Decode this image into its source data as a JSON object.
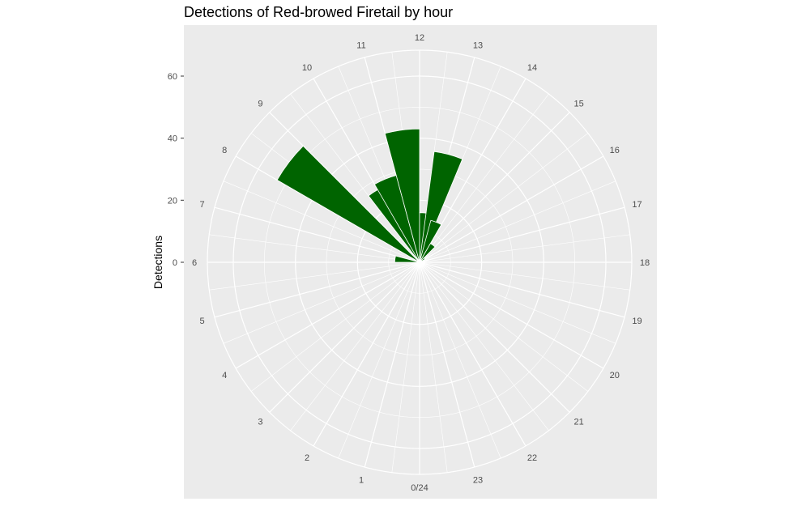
{
  "chart_data": {
    "type": "bar",
    "coord": "polar",
    "title": "Detections of Red-browed Firetail by hour",
    "ylabel": "Detections",
    "xlabel": "",
    "hour_labels": [
      "0/24",
      "1",
      "2",
      "3",
      "4",
      "5",
      "6",
      "7",
      "8",
      "9",
      "10",
      "11",
      "12",
      "13",
      "14",
      "15",
      "16",
      "17",
      "18",
      "19",
      "20",
      "21",
      "22",
      "23"
    ],
    "y_ticks": [
      0,
      20,
      40,
      60
    ],
    "ylim": [
      0,
      60
    ],
    "bar_color": "#006400",
    "panel_background": "#ebebeb",
    "grid_color": "#ffffff",
    "bins": [
      {
        "hour": 5.5,
        "value": 1
      },
      {
        "hour": 6.5,
        "value": 8
      },
      {
        "hour": 7.5,
        "value": 1
      },
      {
        "hour": 8.5,
        "value": 53
      },
      {
        "hour": 9.5,
        "value": 1
      },
      {
        "hour": 10.0,
        "value": 27
      },
      {
        "hour": 10.5,
        "value": 29
      },
      {
        "hour": 11.5,
        "value": 43
      },
      {
        "hour": 12.5,
        "value": 16
      },
      {
        "hour": 13.0,
        "value": 36
      },
      {
        "hour": 13.5,
        "value": 14
      },
      {
        "hour": 14.5,
        "value": 7
      },
      {
        "hour": 15.5,
        "value": 2
      }
    ]
  }
}
